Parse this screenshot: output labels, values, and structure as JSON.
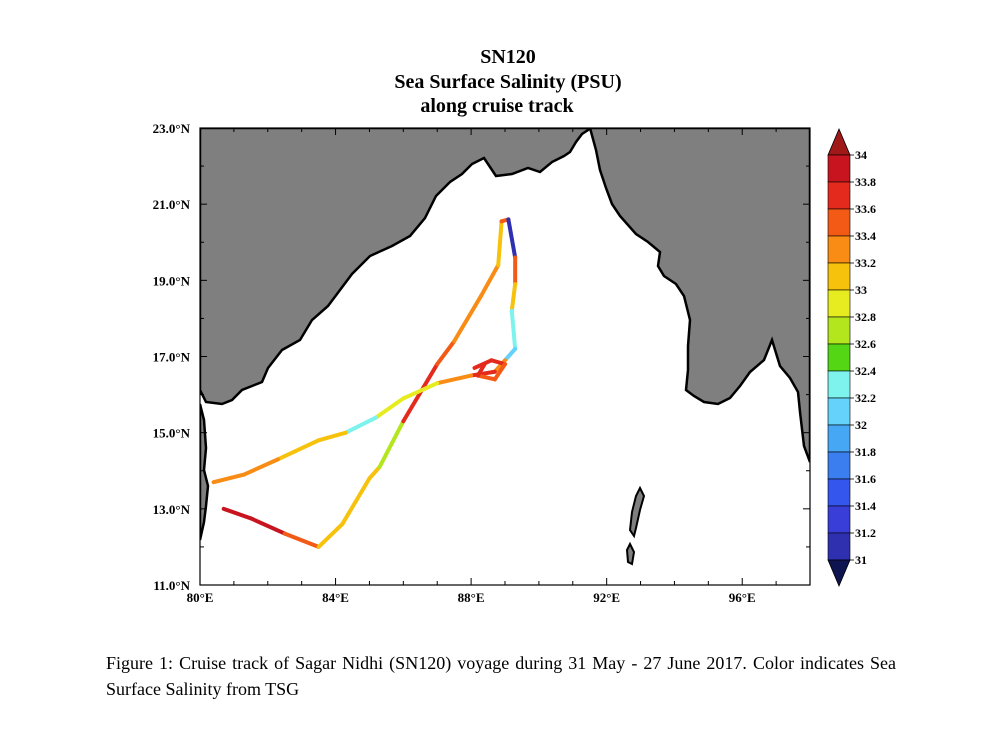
{
  "map": {
    "title_lines": [
      "SN120",
      "Sea Surface Salinity (PSU)",
      "along cruise track"
    ],
    "lon_range": [
      80,
      98
    ],
    "lat_range": [
      11,
      23
    ],
    "x_ticks": [
      {
        "value": 80,
        "label": "80°E"
      },
      {
        "value": 84,
        "label": "84°E"
      },
      {
        "value": 88,
        "label": "88°E"
      },
      {
        "value": 92,
        "label": "92°E"
      },
      {
        "value": 96,
        "label": "96°E"
      }
    ],
    "y_ticks": [
      {
        "value": 11,
        "label": "11.0°N"
      },
      {
        "value": 13,
        "label": "13.0°N"
      },
      {
        "value": 15,
        "label": "15.0°N"
      },
      {
        "value": 17,
        "label": "17.0°N"
      },
      {
        "value": 19,
        "label": "19.0°N"
      },
      {
        "value": 21,
        "label": "21.0°N"
      },
      {
        "value": 23,
        "label": "23.0°N"
      }
    ],
    "colors": {
      "land": "#7f7f7f",
      "sea": "#ffffff",
      "coast": "#000000"
    }
  },
  "colorbar": {
    "labels": [
      "34",
      "33.8",
      "33.6",
      "33.4",
      "33.2",
      "33",
      "32.8",
      "32.6",
      "32.4",
      "32.2",
      "32",
      "31.8",
      "31.6",
      "31.4",
      "31.2",
      "31"
    ],
    "colors": [
      "#c8141e",
      "#e42a1c",
      "#f25a16",
      "#f88c14",
      "#f6c20c",
      "#e6ec20",
      "#b4e61e",
      "#54d614",
      "#7ef2ec",
      "#64d2fa",
      "#46a8f4",
      "#3a7ef0",
      "#3456ec",
      "#3a3ed8",
      "#2e30b0",
      "#1a1e72"
    ],
    "top_color": "#a01818",
    "bottom_color": "#0e1450"
  },
  "track": {
    "segments": [
      {
        "lon": 80.7,
        "lat": 13.0,
        "salinity": 33.9
      },
      {
        "lon": 81.5,
        "lat": 12.75,
        "salinity": 33.9
      },
      {
        "lon": 82.5,
        "lat": 12.35,
        "salinity": 33.5
      },
      {
        "lon": 83.5,
        "lat": 12.0,
        "salinity": 33.2
      },
      {
        "lon": 84.2,
        "lat": 12.6,
        "salinity": 33.1
      },
      {
        "lon": 85.0,
        "lat": 13.8,
        "salinity": 33.1
      },
      {
        "lon": 85.3,
        "lat": 14.1,
        "salinity": 32.7
      },
      {
        "lon": 86.0,
        "lat": 15.3,
        "salinity": 33.7
      },
      {
        "lon": 87.0,
        "lat": 16.8,
        "salinity": 33.6
      },
      {
        "lon": 87.5,
        "lat": 17.4,
        "salinity": 33.3
      },
      {
        "lon": 88.3,
        "lat": 18.6,
        "salinity": 33.4
      },
      {
        "lon": 88.8,
        "lat": 19.4,
        "salinity": 33.2
      },
      {
        "lon": 88.9,
        "lat": 20.55,
        "salinity": 33.6
      },
      {
        "lon": 89.1,
        "lat": 20.6,
        "salinity": 31.2
      },
      {
        "lon": 89.3,
        "lat": 19.6,
        "salinity": 33.6
      },
      {
        "lon": 89.3,
        "lat": 18.9,
        "salinity": 33.2
      },
      {
        "lon": 89.2,
        "lat": 18.2,
        "salinity": 32.3
      },
      {
        "lon": 89.3,
        "lat": 17.2,
        "salinity": 32.2
      },
      {
        "lon": 89.0,
        "lat": 16.9,
        "salinity": 33.3
      },
      {
        "lon": 88.7,
        "lat": 16.6,
        "salinity": 33.7
      },
      {
        "lon": 88.0,
        "lat": 16.5,
        "salinity": 33.3
      },
      {
        "lon": 87.0,
        "lat": 16.3,
        "salinity": 33.0
      },
      {
        "lon": 86.0,
        "lat": 15.9,
        "salinity": 32.9
      },
      {
        "lon": 85.2,
        "lat": 15.4,
        "salinity": 32.3
      },
      {
        "lon": 84.3,
        "lat": 15.0,
        "salinity": 33.2
      },
      {
        "lon": 83.5,
        "lat": 14.8,
        "salinity": 33.1
      },
      {
        "lon": 82.3,
        "lat": 14.3,
        "salinity": 33.4
      },
      {
        "lon": 81.3,
        "lat": 13.9,
        "salinity": 33.4
      },
      {
        "lon": 80.4,
        "lat": 13.7,
        "salinity": 33.4
      }
    ],
    "loop": [
      {
        "lon": 88.1,
        "lat": 16.7,
        "salinity": 33.8
      },
      {
        "lon": 88.6,
        "lat": 16.9,
        "salinity": 33.8
      },
      {
        "lon": 89.0,
        "lat": 16.8,
        "salinity": 33.6
      },
      {
        "lon": 88.7,
        "lat": 16.4,
        "salinity": 33.5
      },
      {
        "lon": 88.2,
        "lat": 16.5,
        "salinity": 33.7
      },
      {
        "lon": 88.4,
        "lat": 16.8,
        "salinity": 33.8
      }
    ]
  },
  "caption": {
    "text": "Figure 1:   Cruise track of Sagar Nidhi (SN120) voyage during 31 May - 27 June 2017.   Color indicates Sea Surface Salinity from TSG"
  }
}
